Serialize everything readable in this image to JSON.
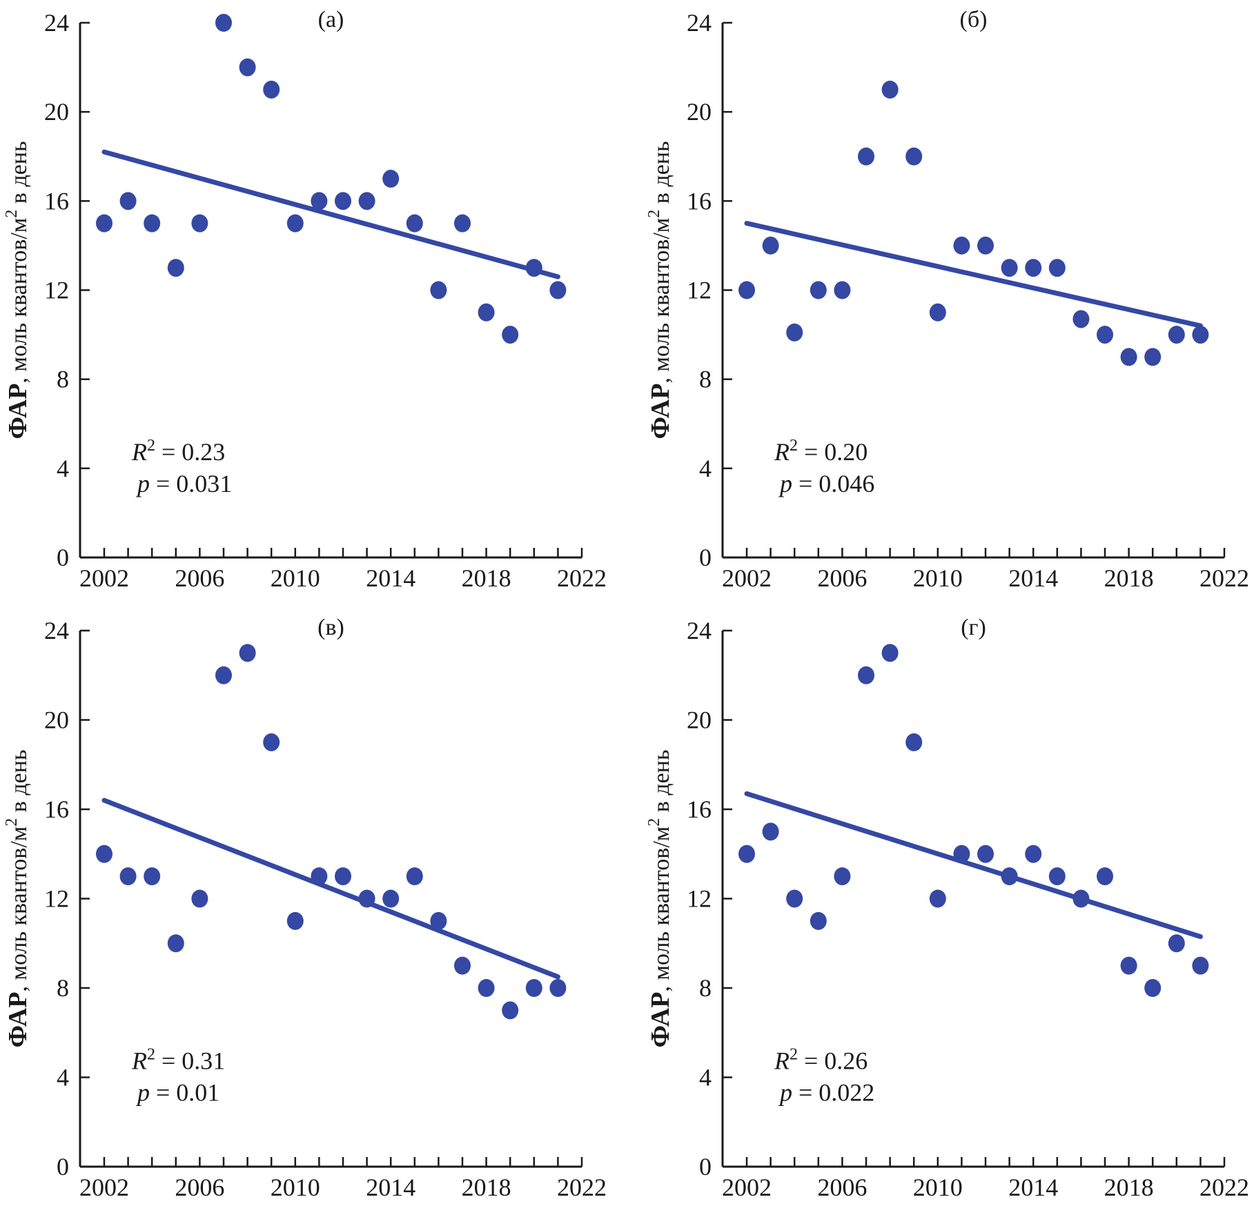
{
  "chart_data": [
    {
      "type": "scatter",
      "panel": "(а)",
      "title": "(а)",
      "xlabel": "",
      "ylabel": "ФАР, моль квантов/м² в день",
      "ylabel_bold_part": "ФАР",
      "ylabel_rest": ", моль квантов/м",
      "ylabel_sup": "2",
      "ylabel_tail": " в день",
      "xlim": [
        2001,
        2022
      ],
      "ylim": [
        0,
        24
      ],
      "xticks": [
        2002,
        2006,
        2010,
        2014,
        2018,
        2022
      ],
      "yticks": [
        0,
        4,
        8,
        12,
        16,
        20,
        24
      ],
      "minor_xticks_every": 1,
      "grid": false,
      "x": [
        2002,
        2003,
        2004,
        2005,
        2006,
        2007,
        2008,
        2009,
        2010,
        2011,
        2012,
        2013,
        2014,
        2015,
        2016,
        2017,
        2018,
        2019,
        2020,
        2021
      ],
      "y": [
        15,
        16,
        15,
        13,
        15,
        24,
        22,
        21,
        15,
        16,
        16,
        16,
        17,
        15,
        12,
        15,
        11,
        10,
        13,
        12
      ],
      "trend": {
        "x": [
          2002,
          2021
        ],
        "y": [
          18.2,
          12.6
        ]
      },
      "stats": {
        "r2_label": "R",
        "r2_sup": "2",
        "r2_value": " = 0.23",
        "p_label": "p",
        "p_value": " = 0.031"
      }
    },
    {
      "type": "scatter",
      "panel": "(б)",
      "title": "(б)",
      "xlabel": "",
      "ylabel": "ФАР, моль квантов/м² в день",
      "ylabel_bold_part": "ФАР",
      "ylabel_rest": ", моль квантов/м",
      "ylabel_sup": "2",
      "ylabel_tail": " в день",
      "xlim": [
        2001,
        2022
      ],
      "ylim": [
        0,
        24
      ],
      "xticks": [
        2002,
        2006,
        2010,
        2014,
        2018,
        2022
      ],
      "yticks": [
        0,
        4,
        8,
        12,
        16,
        20,
        24
      ],
      "minor_xticks_every": 1,
      "grid": false,
      "x": [
        2002,
        2003,
        2004,
        2005,
        2006,
        2007,
        2008,
        2009,
        2010,
        2011,
        2012,
        2013,
        2014,
        2015,
        2016,
        2017,
        2018,
        2019,
        2020,
        2021
      ],
      "y": [
        12,
        14,
        10.1,
        12,
        12,
        18,
        21,
        18,
        11,
        14,
        14,
        13,
        13,
        13,
        10.7,
        10,
        9,
        9,
        10,
        10
      ],
      "trend": {
        "x": [
          2002,
          2021
        ],
        "y": [
          15.0,
          10.4
        ]
      },
      "stats": {
        "r2_label": "R",
        "r2_sup": "2",
        "r2_value": " = 0.20",
        "p_label": "p",
        "p_value": " = 0.046"
      }
    },
    {
      "type": "scatter",
      "panel": "(в)",
      "title": "(в)",
      "xlabel": "",
      "ylabel": "ФАР, моль квантов/м² в день",
      "ylabel_bold_part": "ФАР",
      "ylabel_rest": ", моль квантов/м",
      "ylabel_sup": "2",
      "ylabel_tail": " в день",
      "xlim": [
        2001,
        2022
      ],
      "ylim": [
        0,
        24
      ],
      "xticks": [
        2002,
        2006,
        2010,
        2014,
        2018,
        2022
      ],
      "yticks": [
        0,
        4,
        8,
        12,
        16,
        20,
        24
      ],
      "minor_xticks_every": 1,
      "grid": false,
      "x": [
        2002,
        2003,
        2004,
        2005,
        2006,
        2007,
        2008,
        2009,
        2010,
        2011,
        2012,
        2013,
        2014,
        2015,
        2016,
        2017,
        2018,
        2019,
        2020,
        2021
      ],
      "y": [
        14,
        13,
        13,
        10,
        12,
        22,
        23,
        19,
        11,
        13,
        13,
        12,
        12,
        13,
        11,
        9,
        8,
        7,
        8,
        8
      ],
      "trend": {
        "x": [
          2002,
          2021
        ],
        "y": [
          16.4,
          8.5
        ]
      },
      "stats": {
        "r2_label": "R",
        "r2_sup": "2",
        "r2_value": " = 0.31",
        "p_label": "p",
        "p_value": " = 0.01"
      }
    },
    {
      "type": "scatter",
      "panel": "(г)",
      "title": "(г)",
      "xlabel": "",
      "ylabel": "ФАР, моль квантов/м² в день",
      "ylabel_bold_part": "ФАР",
      "ylabel_rest": ", моль квантов/м",
      "ylabel_sup": "2",
      "ylabel_tail": " в день",
      "xlim": [
        2001,
        2022
      ],
      "ylim": [
        0,
        24
      ],
      "xticks": [
        2002,
        2006,
        2010,
        2014,
        2018,
        2022
      ],
      "yticks": [
        0,
        4,
        8,
        12,
        16,
        20,
        24
      ],
      "minor_xticks_every": 1,
      "grid": false,
      "x": [
        2002,
        2003,
        2004,
        2005,
        2006,
        2007,
        2008,
        2009,
        2010,
        2011,
        2012,
        2013,
        2014,
        2015,
        2016,
        2017,
        2018,
        2019,
        2020,
        2021
      ],
      "y": [
        14,
        15,
        12,
        11,
        13,
        22,
        23,
        19,
        12,
        14,
        14,
        13,
        14,
        13,
        12,
        13,
        9,
        8,
        10,
        9
      ],
      "trend": {
        "x": [
          2002,
          2021
        ],
        "y": [
          16.7,
          10.3
        ]
      },
      "stats": {
        "r2_label": "R",
        "r2_sup": "2",
        "r2_value": " = 0.26",
        "p_label": "p",
        "p_value": " = 0.022"
      }
    }
  ],
  "colors": {
    "marker": "#3448a4",
    "trend": "#3448a4",
    "axis": "#1a1a1a"
  }
}
